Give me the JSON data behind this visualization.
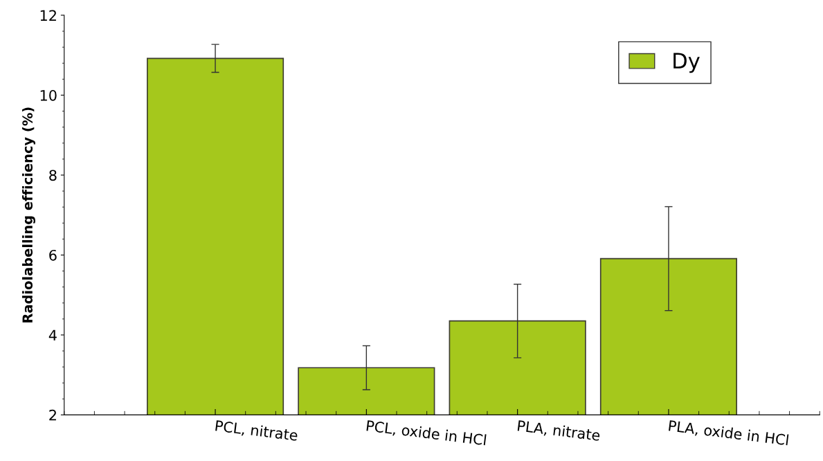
{
  "chart_data": {
    "type": "bar",
    "ylabel": "Radiolabelling efficiency (%)",
    "categories": [
      "PCL, nitrate",
      "PCL, oxide in HCl",
      "PLA, nitrate",
      "PLA, oxide in HCl"
    ],
    "series": [
      {
        "name": "Dy",
        "color": "#a5c81c",
        "values": [
          10.92,
          3.18,
          4.35,
          5.91
        ],
        "errors": [
          0.35,
          0.55,
          0.92,
          1.3
        ]
      }
    ],
    "ylim": [
      2,
      12
    ],
    "yticks": [
      2,
      4,
      6,
      8,
      10,
      12
    ],
    "grid": false,
    "legend": "top right"
  }
}
